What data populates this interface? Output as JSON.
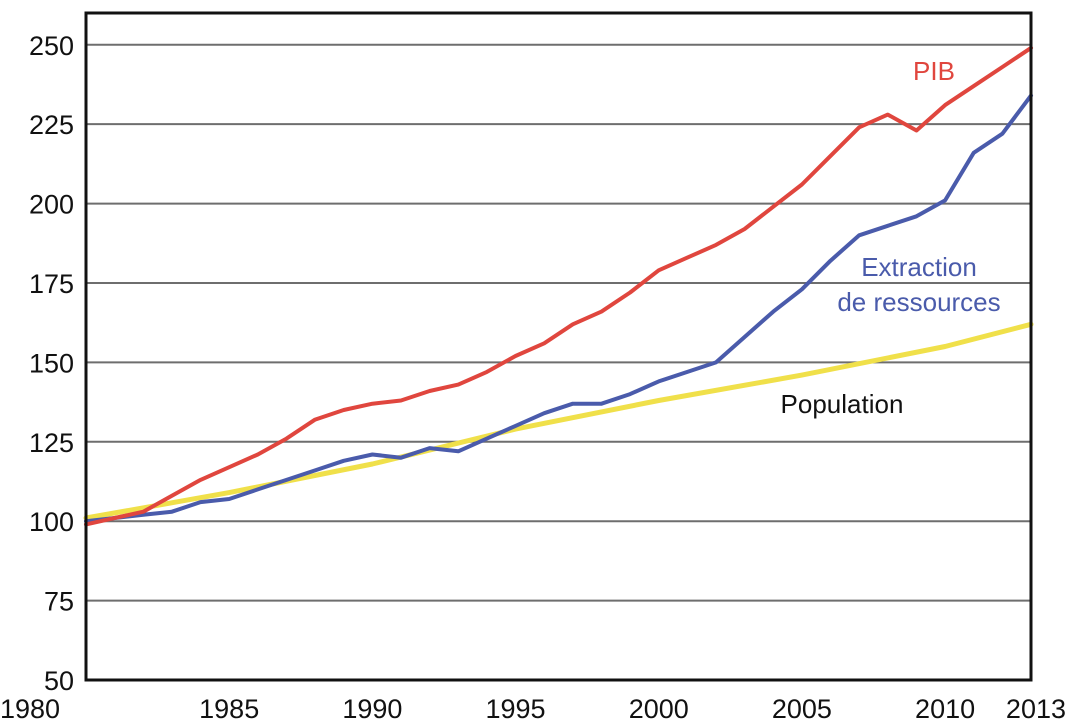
{
  "chart_data": {
    "type": "line",
    "title": "",
    "xlabel": "",
    "ylabel": "",
    "xlim": [
      1980,
      2013
    ],
    "ylim": [
      50,
      260
    ],
    "x_ticks": [
      1980,
      1985,
      1990,
      1995,
      2000,
      2005,
      2010,
      2013
    ],
    "y_ticks": [
      50,
      75,
      100,
      125,
      150,
      175,
      200,
      225,
      250
    ],
    "grid": "horizontal",
    "legend": "inline labels",
    "series": [
      {
        "name": "PIB",
        "label_lines": [
          "PIB"
        ],
        "color": "#e0463e",
        "x": [
          1980,
          1981,
          1982,
          1983,
          1984,
          1985,
          1986,
          1987,
          1988,
          1989,
          1990,
          1991,
          1992,
          1993,
          1994,
          1995,
          1996,
          1997,
          1998,
          1999,
          2000,
          2001,
          2002,
          2003,
          2004,
          2005,
          2006,
          2007,
          2008,
          2009,
          2010,
          2011,
          2012,
          2013
        ],
        "values": [
          99,
          101,
          103,
          108,
          113,
          117,
          121,
          126,
          132,
          135,
          137,
          138,
          141,
          143,
          147,
          152,
          156,
          162,
          166,
          172,
          179,
          183,
          187,
          192,
          199,
          206,
          215,
          224,
          228,
          223,
          231,
          237,
          243,
          249
        ]
      },
      {
        "name": "Extraction de ressources",
        "label_lines": [
          "Extraction",
          "de ressources"
        ],
        "color": "#4a5bab",
        "x": [
          1980,
          1981,
          1982,
          1983,
          1984,
          1985,
          1986,
          1987,
          1988,
          1989,
          1990,
          1991,
          1992,
          1993,
          1994,
          1995,
          1996,
          1997,
          1998,
          1999,
          2000,
          2001,
          2002,
          2003,
          2004,
          2005,
          2006,
          2007,
          2008,
          2009,
          2010,
          2011,
          2012,
          2013
        ],
        "values": [
          100,
          101,
          102,
          103,
          106,
          107,
          110,
          113,
          116,
          119,
          121,
          120,
          123,
          122,
          126,
          130,
          134,
          137,
          137,
          140,
          144,
          147,
          150,
          158,
          166,
          173,
          182,
          190,
          193,
          196,
          201,
          216,
          222,
          234
        ]
      },
      {
        "name": "Population",
        "label_lines": [
          "Population"
        ],
        "color": "#f0e04a",
        "x": [
          1980,
          1985,
          1990,
          1995,
          2000,
          2005,
          2010,
          2013
        ],
        "values": [
          101,
          109,
          118,
          129,
          138,
          146,
          155,
          162
        ]
      }
    ]
  }
}
